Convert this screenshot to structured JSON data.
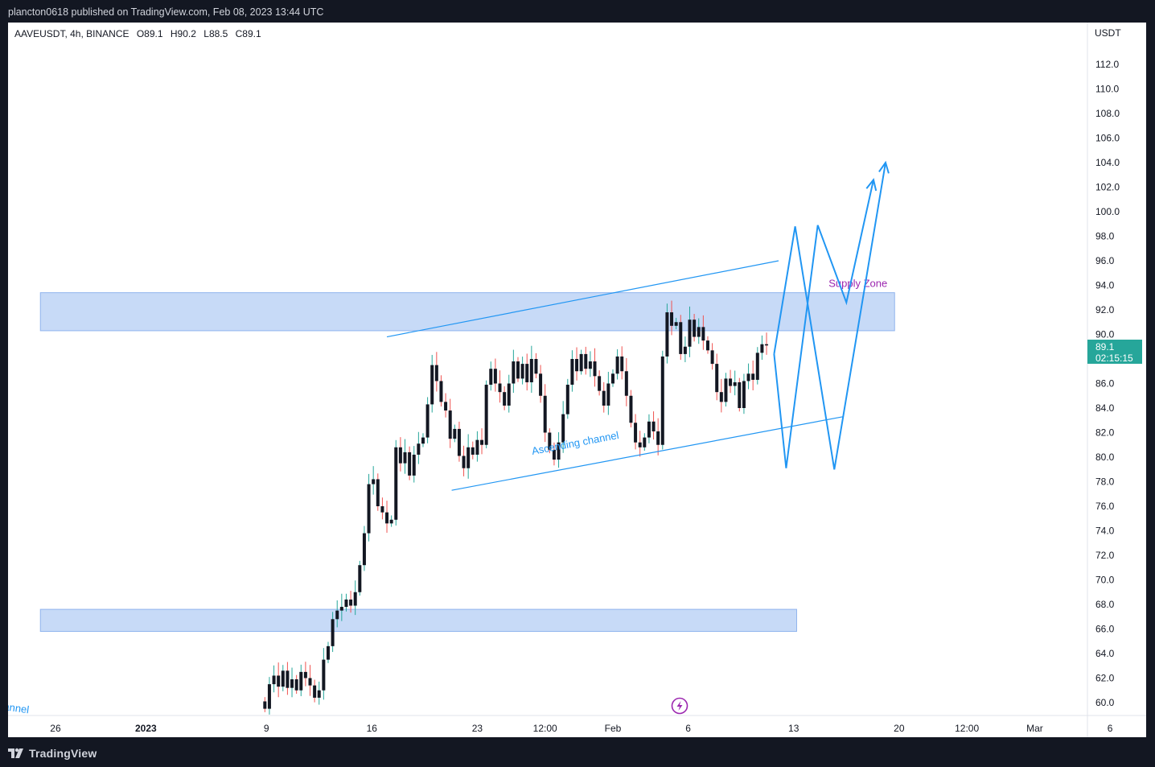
{
  "header": {
    "publish_line": "plancton0618 published on TradingView.com, Feb 08, 2023 13:44 UTC"
  },
  "footer": {
    "brand": "TradingView",
    "logo_icon": "tradingview-logo-icon"
  },
  "legend": {
    "symbol_line": "AAVEUSDT, 4h, BINANCE",
    "open": "O89.1",
    "high": "H90.2",
    "low": "L88.5",
    "close": "C89.1"
  },
  "colors": {
    "up": "#26a69a",
    "down": "#ef5350",
    "zone_fill": "#c7daf7",
    "zone_stroke": "#90b4ee",
    "drawing": "#2196f3",
    "supply_label": "#9c27b0",
    "price_badge": "#26a69a"
  },
  "chart_data": {
    "type": "candlestick",
    "symbol": "AAVEUSDT",
    "interval": "4h",
    "exchange": "BINANCE",
    "currency": "USDT",
    "ylim": [
      59,
      115
    ],
    "y_ticks": [
      "60.0",
      "62.0",
      "64.0",
      "66.0",
      "68.0",
      "70.0",
      "72.0",
      "74.0",
      "76.0",
      "78.0",
      "80.0",
      "82.0",
      "84.0",
      "86.0",
      "88.0",
      "90.0",
      "92.0",
      "94.0",
      "96.0",
      "98.0",
      "100.0",
      "102.0",
      "104.0",
      "106.0",
      "108.0",
      "110.0",
      "112.0"
    ],
    "x_ticks": [
      {
        "label": "26",
        "day": -11,
        "bold": false
      },
      {
        "label": "2023",
        "day": -5,
        "bold": true
      },
      {
        "label": "9",
        "day": 3,
        "bold": false
      },
      {
        "label": "16",
        "day": 10,
        "bold": false
      },
      {
        "label": "23",
        "day": 17,
        "bold": false
      },
      {
        "label": "12:00",
        "day": 21.5,
        "bold": false
      },
      {
        "label": "Feb",
        "day": 26,
        "bold": false
      },
      {
        "label": "6",
        "day": 31,
        "bold": false
      },
      {
        "label": "13",
        "day": 38,
        "bold": false
      },
      {
        "label": "20",
        "day": 45,
        "bold": false
      },
      {
        "label": "12:00",
        "day": 49.5,
        "bold": false
      },
      {
        "label": "Mar",
        "day": 54,
        "bold": false
      },
      {
        "label": "6",
        "day": 59,
        "bold": false
      }
    ],
    "last_price": "89.1",
    "countdown": "02:15:15",
    "close_series": [
      {
        "day": 2.9,
        "close": 59.5
      },
      {
        "day": 3.2,
        "close": 61.5
      },
      {
        "day": 3.5,
        "close": 62.2
      },
      {
        "day": 3.8,
        "close": 61.3
      },
      {
        "day": 4.1,
        "close": 62.6
      },
      {
        "day": 4.4,
        "close": 61.2
      },
      {
        "day": 4.7,
        "close": 61.9
      },
      {
        "day": 5.0,
        "close": 61.0
      },
      {
        "day": 5.3,
        "close": 62.5
      },
      {
        "day": 5.6,
        "close": 62.0
      },
      {
        "day": 5.9,
        "close": 61.4
      },
      {
        "day": 6.2,
        "close": 60.4
      },
      {
        "day": 6.5,
        "close": 61.0
      },
      {
        "day": 6.8,
        "close": 63.5
      },
      {
        "day": 7.1,
        "close": 64.6
      },
      {
        "day": 7.4,
        "close": 66.8
      },
      {
        "day": 7.7,
        "close": 67.5
      },
      {
        "day": 8.0,
        "close": 67.8
      },
      {
        "day": 8.3,
        "close": 68.4
      },
      {
        "day": 8.6,
        "close": 67.9
      },
      {
        "day": 8.9,
        "close": 69.0
      },
      {
        "day": 9.2,
        "close": 71.2
      },
      {
        "day": 9.5,
        "close": 73.8
      },
      {
        "day": 9.8,
        "close": 77.8
      },
      {
        "day": 10.1,
        "close": 78.2
      },
      {
        "day": 10.4,
        "close": 76.0
      },
      {
        "day": 10.7,
        "close": 75.5
      },
      {
        "day": 11.0,
        "close": 74.6
      },
      {
        "day": 11.3,
        "close": 74.9
      },
      {
        "day": 11.6,
        "close": 80.8
      },
      {
        "day": 11.9,
        "close": 79.5
      },
      {
        "day": 12.2,
        "close": 80.4
      },
      {
        "day": 12.5,
        "close": 78.5
      },
      {
        "day": 12.8,
        "close": 80.2
      },
      {
        "day": 13.1,
        "close": 81.1
      },
      {
        "day": 13.4,
        "close": 81.6
      },
      {
        "day": 13.7,
        "close": 84.3
      },
      {
        "day": 14.0,
        "close": 87.5
      },
      {
        "day": 14.3,
        "close": 86.2
      },
      {
        "day": 14.6,
        "close": 84.5
      },
      {
        "day": 14.9,
        "close": 83.8
      },
      {
        "day": 15.2,
        "close": 81.5
      },
      {
        "day": 15.5,
        "close": 82.3
      },
      {
        "day": 15.8,
        "close": 80.1
      },
      {
        "day": 16.1,
        "close": 79.1
      },
      {
        "day": 16.4,
        "close": 80.8
      },
      {
        "day": 16.7,
        "close": 80.2
      },
      {
        "day": 17.0,
        "close": 81.4
      },
      {
        "day": 17.3,
        "close": 81.0
      },
      {
        "day": 17.6,
        "close": 85.9
      },
      {
        "day": 17.9,
        "close": 87.2
      },
      {
        "day": 18.2,
        "close": 86.0
      },
      {
        "day": 18.5,
        "close": 85.3
      },
      {
        "day": 18.8,
        "close": 84.2
      },
      {
        "day": 19.1,
        "close": 86.0
      },
      {
        "day": 19.4,
        "close": 87.8
      },
      {
        "day": 19.7,
        "close": 86.4
      },
      {
        "day": 20.0,
        "close": 87.6
      },
      {
        "day": 20.3,
        "close": 86.1
      },
      {
        "day": 20.6,
        "close": 88.0
      },
      {
        "day": 20.9,
        "close": 86.8
      },
      {
        "day": 21.2,
        "close": 85.0
      },
      {
        "day": 21.5,
        "close": 82.0
      },
      {
        "day": 21.8,
        "close": 80.6
      },
      {
        "day": 22.1,
        "close": 79.8
      },
      {
        "day": 22.4,
        "close": 81.2
      },
      {
        "day": 22.7,
        "close": 83.5
      },
      {
        "day": 23.0,
        "close": 85.9
      },
      {
        "day": 23.3,
        "close": 88.0
      },
      {
        "day": 23.6,
        "close": 87.0
      },
      {
        "day": 23.9,
        "close": 88.4
      },
      {
        "day": 24.2,
        "close": 87.2
      },
      {
        "day": 24.5,
        "close": 87.8
      },
      {
        "day": 24.8,
        "close": 86.6
      },
      {
        "day": 25.1,
        "close": 85.4
      },
      {
        "day": 25.4,
        "close": 84.2
      },
      {
        "day": 25.7,
        "close": 86.0
      },
      {
        "day": 26.0,
        "close": 86.8
      },
      {
        "day": 26.3,
        "close": 88.2
      },
      {
        "day": 26.6,
        "close": 87.0
      },
      {
        "day": 26.9,
        "close": 85.0
      },
      {
        "day": 27.2,
        "close": 82.8
      },
      {
        "day": 27.5,
        "close": 81.2
      },
      {
        "day": 27.8,
        "close": 80.8
      },
      {
        "day": 28.1,
        "close": 81.6
      },
      {
        "day": 28.4,
        "close": 82.9
      },
      {
        "day": 28.7,
        "close": 82.1
      },
      {
        "day": 29.0,
        "close": 81.0
      },
      {
        "day": 29.3,
        "close": 88.2
      },
      {
        "day": 29.6,
        "close": 91.8
      },
      {
        "day": 29.9,
        "close": 90.7
      },
      {
        "day": 30.2,
        "close": 91.0
      },
      {
        "day": 30.5,
        "close": 88.4
      },
      {
        "day": 30.8,
        "close": 89.0
      },
      {
        "day": 31.1,
        "close": 91.2
      },
      {
        "day": 31.4,
        "close": 89.8
      },
      {
        "day": 31.7,
        "close": 90.6
      },
      {
        "day": 32.0,
        "close": 89.5
      },
      {
        "day": 32.3,
        "close": 88.7
      },
      {
        "day": 32.6,
        "close": 87.6
      },
      {
        "day": 32.9,
        "close": 85.3
      },
      {
        "day": 33.2,
        "close": 84.5
      },
      {
        "day": 33.5,
        "close": 86.4
      },
      {
        "day": 33.8,
        "close": 85.8
      },
      {
        "day": 34.1,
        "close": 86.1
      },
      {
        "day": 34.4,
        "close": 84.0
      },
      {
        "day": 34.7,
        "close": 86.2
      },
      {
        "day": 35.0,
        "close": 86.8
      },
      {
        "day": 35.3,
        "close": 86.3
      },
      {
        "day": 35.6,
        "close": 88.5
      },
      {
        "day": 35.9,
        "close": 89.2
      },
      {
        "day": 36.2,
        "close": 89.1
      }
    ],
    "zones": [
      {
        "from_day": -12,
        "to_day": 44.7,
        "low": 90.3,
        "high": 93.4,
        "label": "Supply Zone"
      },
      {
        "from_day": -12,
        "to_day": 38.2,
        "low": 65.8,
        "high": 67.6,
        "label": ""
      }
    ],
    "channel": {
      "label": "Ascending channel",
      "upper": [
        {
          "day": 11.0,
          "price": 89.8
        },
        {
          "day": 37.0,
          "price": 96.0
        }
      ],
      "lower": [
        {
          "day": 15.3,
          "price": 77.3
        },
        {
          "day": 41.3,
          "price": 83.3
        }
      ],
      "prior_label": "annel"
    },
    "projection_paths": [
      [
        {
          "day": 36.7,
          "price": 88.4
        },
        {
          "day": 37.5,
          "price": 79.1
        },
        {
          "day": 39.6,
          "price": 98.9
        },
        {
          "day": 41.5,
          "price": 92.6
        },
        {
          "day": 43.3,
          "price": 102.6
        }
      ],
      [
        {
          "day": 36.7,
          "price": 88.4
        },
        {
          "day": 38.1,
          "price": 98.8
        },
        {
          "day": 40.7,
          "price": 79.0
        },
        {
          "day": 44.1,
          "price": 104.0
        }
      ]
    ]
  }
}
